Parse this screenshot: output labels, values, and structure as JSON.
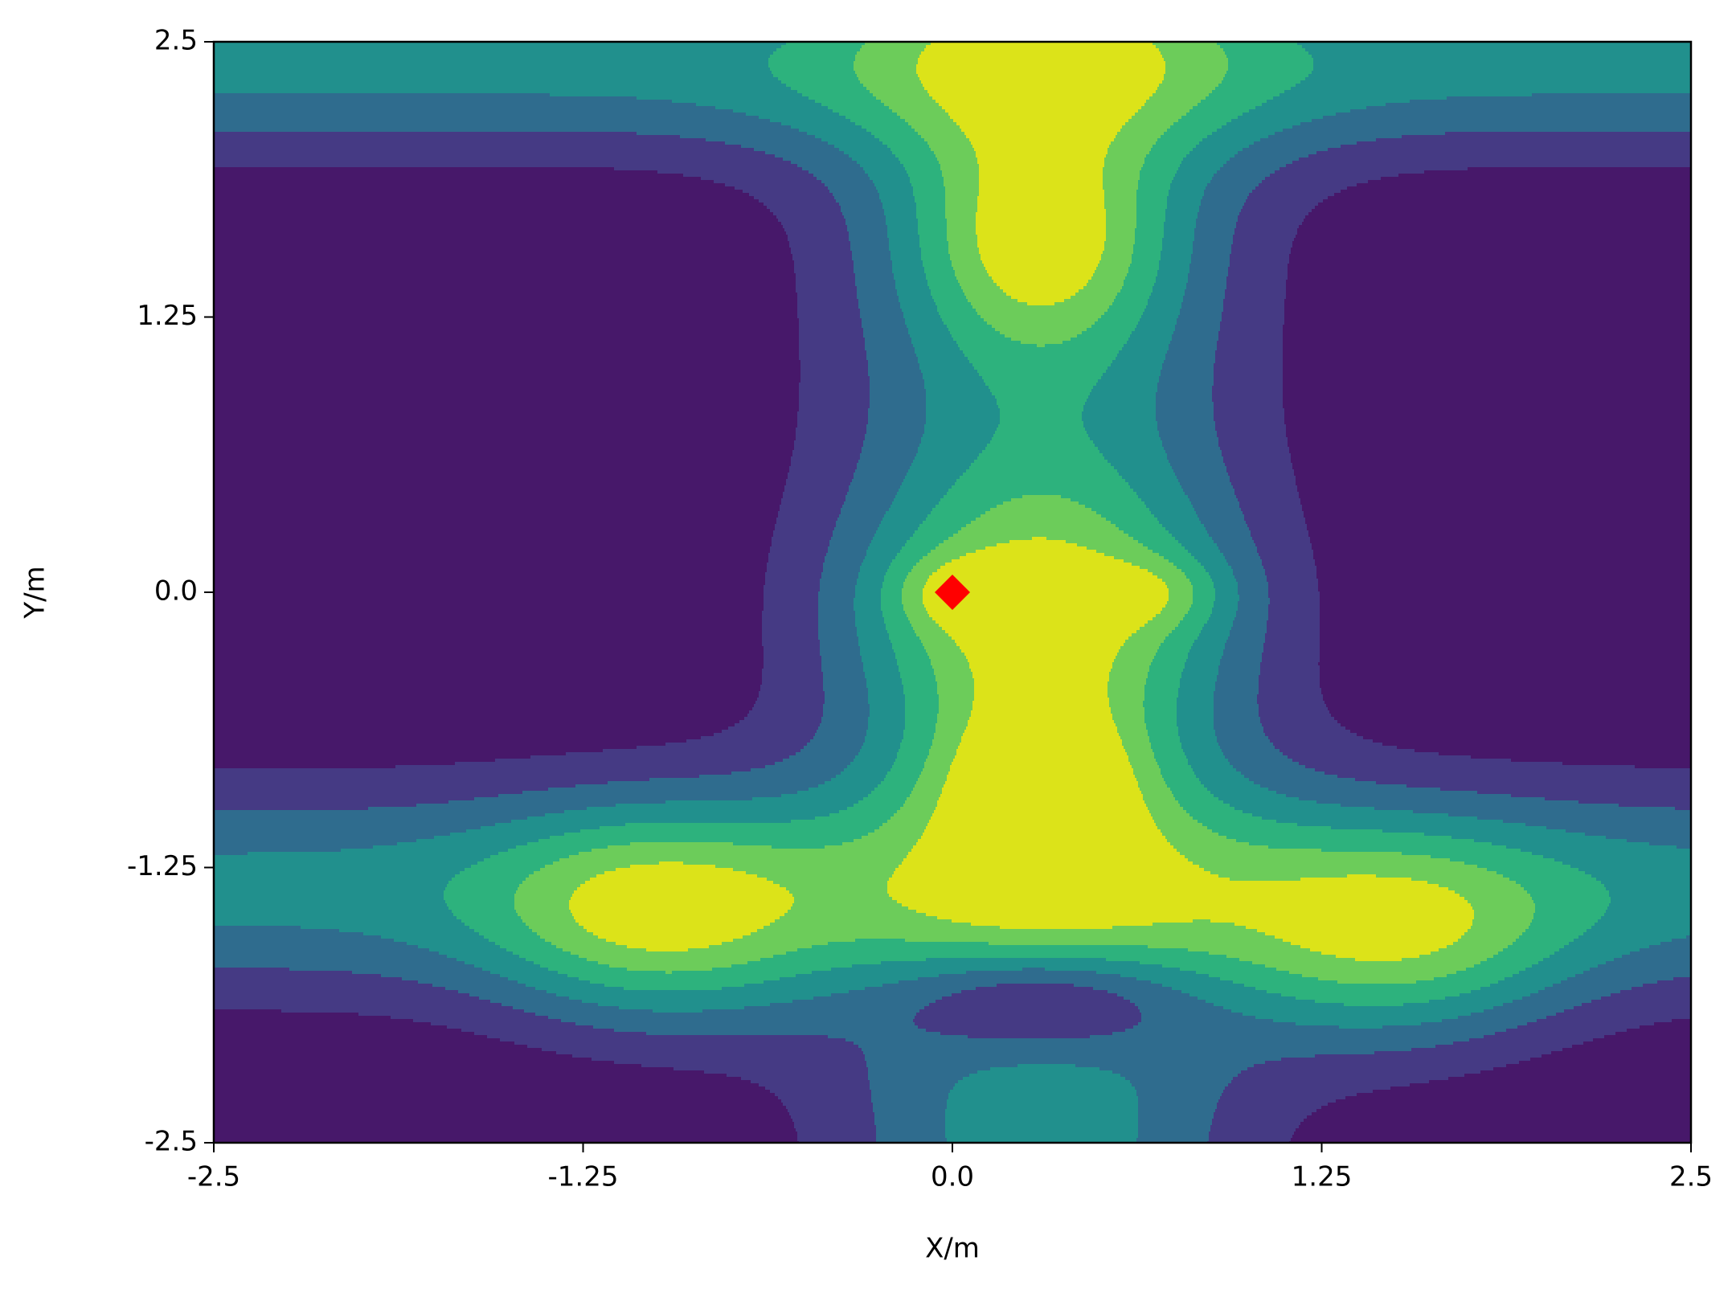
{
  "chart_data": {
    "type": "contour",
    "x_label": "X/m",
    "y_label": "Y/m",
    "xlim": [
      -2.5,
      2.5
    ],
    "ylim": [
      -2.5,
      2.5
    ],
    "xticks": [
      -2.5,
      -1.25,
      {
        "value": 0,
        "label": "0.0"
      },
      1.25,
      2.5
    ],
    "yticks": [
      -2.5,
      -1.25,
      {
        "value": 0,
        "label": "0.0"
      },
      1.25,
      2.5
    ],
    "colormap": [
      "#47186a",
      "#453a84",
      "#2f6c8e",
      "#21908d",
      "#2db27d",
      "#6ccc5a",
      "#dce319"
    ],
    "x": [
      0
    ],
    "values": [
      0
    ],
    "marker_color": "#ff0000"
  }
}
